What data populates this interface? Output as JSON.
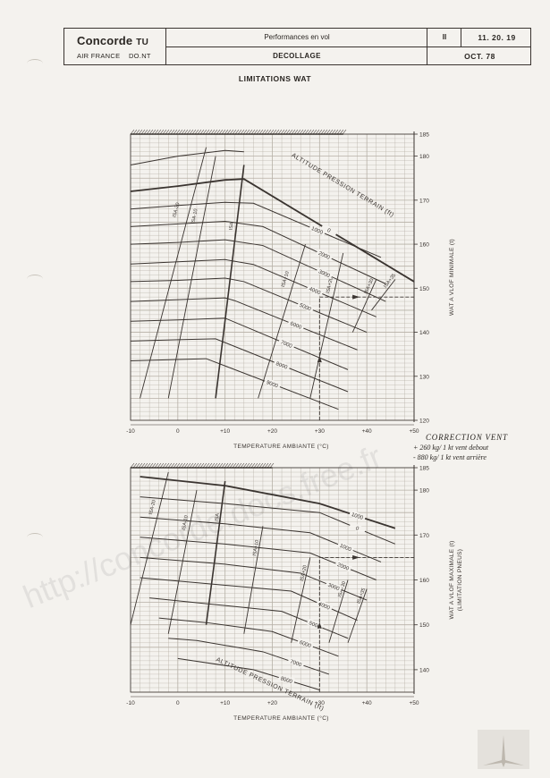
{
  "header": {
    "brand": "Concorde",
    "brand_suffix": "TU",
    "airline": "AIR FRANCE    DO.NT",
    "section": "Performances en vol",
    "subject": "DECOLLAGE",
    "chapter": "II",
    "code": "11. 20. 19",
    "date": "OCT. 78"
  },
  "page_title": "LIMITATIONS WAT",
  "correction": {
    "title": "CORRECTION VENT",
    "line1": "+ 260 kg/ 1 kt vent debout",
    "line2": "- 880 kg/ 1 kt vent arrière"
  },
  "watermark": "http://concorde.docs.free.fr",
  "chart_data": [
    {
      "type": "line",
      "xlabel": "TEMPERATURE AMBIANTE (°C)",
      "ylabel": "WAT A VLOF MINIMALE (t)",
      "xlim": [
        -10,
        50
      ],
      "ylim": [
        120,
        185
      ],
      "xticks": [
        "-10",
        "0",
        "+10",
        "+20",
        "+30",
        "+40",
        "+50"
      ],
      "yticks": [
        "120",
        "130",
        "140",
        "150",
        "160",
        "170",
        "180",
        "185"
      ],
      "altitude_title": "ALTITUDE PRESSION TERRAIN (ft)",
      "series": [
        {
          "name": "0",
          "x": [
            -10,
            0,
            10,
            14,
            50
          ],
          "y": [
            172,
            173.2,
            174.6,
            174.8,
            151.5
          ],
          "bold": true
        },
        {
          "name": "1000",
          "x": [
            -10,
            0,
            10,
            16,
            43
          ],
          "y": [
            168,
            168.8,
            169.5,
            169.3,
            157
          ]
        },
        {
          "name": "2000",
          "x": [
            -10,
            0,
            10,
            18,
            44
          ],
          "y": [
            164,
            164.6,
            165.2,
            164,
            151
          ]
        },
        {
          "name": "3000",
          "x": [
            -10,
            0,
            10,
            18,
            44
          ],
          "y": [
            160,
            160.4,
            161,
            159.7,
            147
          ]
        },
        {
          "name": "4000",
          "x": [
            -10,
            0,
            10,
            16,
            42
          ],
          "y": [
            155.5,
            156,
            156.5,
            155.4,
            143.5
          ]
        },
        {
          "name": "5000",
          "x": [
            -10,
            0,
            10,
            14,
            40
          ],
          "y": [
            151.5,
            151.8,
            152.3,
            151.5,
            140
          ]
        },
        {
          "name": "6000",
          "x": [
            -10,
            0,
            10,
            12,
            38
          ],
          "y": [
            147,
            147.4,
            147.8,
            147.2,
            136
          ]
        },
        {
          "name": "7000",
          "x": [
            -10,
            0,
            10,
            10,
            36
          ],
          "y": [
            142.5,
            142.8,
            143.2,
            143.2,
            131.5
          ]
        },
        {
          "name": "8000",
          "x": [
            -10,
            0,
            8,
            36
          ],
          "y": [
            138,
            138.3,
            138.5,
            126.5
          ]
        },
        {
          "name": "9000",
          "x": [
            -10,
            0,
            6,
            34
          ],
          "y": [
            133.5,
            133.8,
            134,
            122.5
          ]
        },
        {
          "name": "",
          "x": [
            -10,
            0,
            10,
            14
          ],
          "y": [
            178,
            180,
            181.3,
            181
          ],
          "peak": true
        }
      ],
      "isa_lines": [
        {
          "name": "ISA-20",
          "x": [
            -8,
            6
          ],
          "y": [
            125,
            182
          ]
        },
        {
          "name": "ISA-10",
          "x": [
            -2,
            8
          ],
          "y": [
            125,
            180
          ]
        },
        {
          "name": "ISA",
          "x": [
            8,
            14
          ],
          "y": [
            125,
            178
          ]
        },
        {
          "name": "ISA+10",
          "x": [
            17,
            27
          ],
          "y": [
            125,
            160
          ]
        },
        {
          "name": "ISA+20",
          "x": [
            28,
            35
          ],
          "y": [
            125,
            158
          ]
        },
        {
          "name": "ISA+30",
          "x": [
            37,
            42
          ],
          "y": [
            140,
            152
          ]
        },
        {
          "name": "ISA+35",
          "x": [
            41,
            46
          ],
          "y": [
            145,
            152
          ]
        }
      ],
      "example": {
        "x": 30,
        "y": 148
      }
    },
    {
      "type": "line",
      "xlabel": "TEMPERATURE AMBIANTE (°C)",
      "ylabel": "WAT A VLOF MAXIMALE (t)",
      "ylabel2": "(LIMITATION PNEUS)",
      "xlim": [
        -10,
        50
      ],
      "ylim": [
        135,
        185
      ],
      "xticks": [
        "-10",
        "0",
        "+10",
        "+20",
        "+30",
        "+40",
        "+50"
      ],
      "yticks": [
        "140",
        "150",
        "160",
        "170",
        "180",
        "185"
      ],
      "altitude_title": "ALTITUDE PRESSION TERRAIN (ft)",
      "series": [
        {
          "name": "1000",
          "x": [
            -8,
            10,
            30,
            46
          ],
          "y": [
            183,
            181,
            177,
            171.5
          ],
          "bold": true
        },
        {
          "name": "0",
          "x": [
            -8,
            10,
            30,
            46
          ],
          "y": [
            178.5,
            177,
            175,
            168
          ]
        },
        {
          "name": "1000",
          "x": [
            -8,
            10,
            28,
            43
          ],
          "y": [
            174,
            172.5,
            170.5,
            164
          ]
        },
        {
          "name": "2000",
          "x": [
            -8,
            10,
            28,
            42
          ],
          "y": [
            169.5,
            168,
            166,
            160
          ]
        },
        {
          "name": "3000",
          "x": [
            -8,
            10,
            26,
            40
          ],
          "y": [
            165,
            163.5,
            161.5,
            155.5
          ]
        },
        {
          "name": "4000",
          "x": [
            -8,
            8,
            24,
            38
          ],
          "y": [
            160.5,
            159,
            157.5,
            151
          ]
        },
        {
          "name": "5000",
          "x": [
            -6,
            8,
            22,
            36
          ],
          "y": [
            156,
            154.5,
            153,
            147
          ]
        },
        {
          "name": "6000",
          "x": [
            -4,
            6,
            20,
            34
          ],
          "y": [
            151.5,
            150.5,
            148.5,
            143
          ]
        },
        {
          "name": "7000",
          "x": [
            -2,
            4,
            18,
            32
          ],
          "y": [
            147,
            146.5,
            144,
            139
          ]
        },
        {
          "name": "8000",
          "x": [
            0,
            16,
            30
          ],
          "y": [
            142.5,
            140,
            135.5
          ]
        }
      ],
      "isa_lines": [
        {
          "name": "ISA-20",
          "x": [
            -10,
            -2
          ],
          "y": [
            150,
            184
          ]
        },
        {
          "name": "ISA-10",
          "x": [
            -2,
            4
          ],
          "y": [
            148,
            180
          ]
        },
        {
          "name": "ISA",
          "x": [
            6,
            10
          ],
          "y": [
            150,
            182
          ]
        },
        {
          "name": "ISA+10",
          "x": [
            14,
            18
          ],
          "y": [
            148,
            172
          ]
        },
        {
          "name": "ISA+20",
          "x": [
            24,
            28
          ],
          "y": [
            146,
            165
          ]
        },
        {
          "name": "ISA+30",
          "x": [
            32,
            36
          ],
          "y": [
            146,
            160
          ]
        },
        {
          "name": "ISA+35",
          "x": [
            36,
            40
          ],
          "y": [
            146,
            158
          ]
        }
      ],
      "example": {
        "x": 30,
        "y": 165
      }
    }
  ]
}
